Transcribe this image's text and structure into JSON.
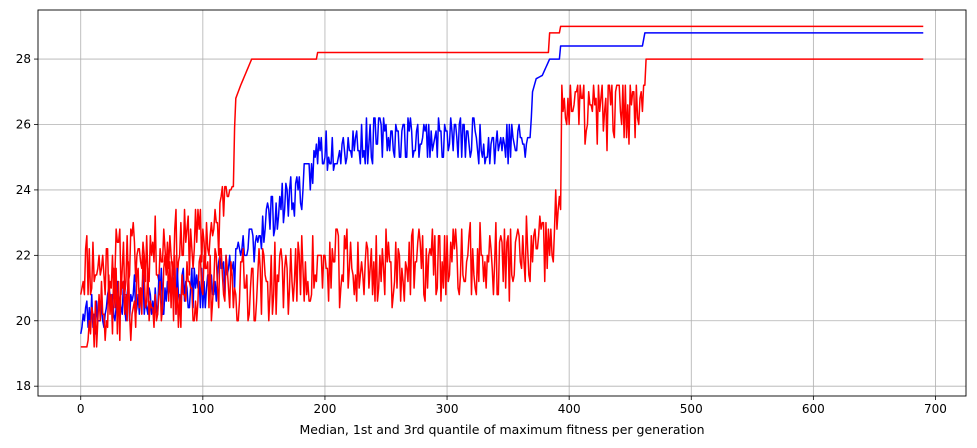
{
  "chart_data": {
    "type": "line",
    "title": "",
    "xlabel": "Median, 1st and 3rd quantile of maximum fitness per generation",
    "ylabel": "",
    "xlim": [
      -35,
      725
    ],
    "ylim": [
      17.7,
      29.5
    ],
    "xticks": [
      0,
      100,
      200,
      300,
      400,
      500,
      600,
      700
    ],
    "yticks": [
      18,
      20,
      22,
      24,
      26,
      28
    ],
    "grid": true,
    "legend": "none",
    "series": [
      {
        "color": "#ff0000",
        "style": "noisy",
        "base": [
          [
            0,
            21.4
          ],
          [
            5,
            21.8
          ],
          [
            15,
            21.6
          ],
          [
            30,
            21.8
          ],
          [
            60,
            22.2
          ],
          [
            90,
            22.4
          ],
          [
            110,
            22.6
          ],
          [
            114,
            23.0
          ],
          [
            117,
            24.0
          ],
          [
            120,
            24.8
          ],
          [
            125,
            25.0
          ],
          [
            127,
            26.8
          ],
          [
            131,
            27.2
          ],
          [
            140,
            28.0
          ],
          [
            193,
            28.0
          ],
          [
            194,
            28.2
          ],
          [
            383,
            28.2
          ],
          [
            384,
            28.8
          ],
          [
            392,
            28.8
          ],
          [
            393,
            29.0
          ],
          [
            690,
            29.0
          ]
        ],
        "noise_range": [
          0,
          125
        ],
        "amp": 1.1,
        "min": 18.0,
        "max": 24.1,
        "seed": 11
      },
      {
        "color": "#0000ff",
        "style": "noisy",
        "base": [
          [
            0,
            20.0
          ],
          [
            30,
            20.6
          ],
          [
            60,
            20.8
          ],
          [
            100,
            21.0
          ],
          [
            130,
            21.8
          ],
          [
            150,
            23.0
          ],
          [
            165,
            23.6
          ],
          [
            185,
            24.2
          ],
          [
            195,
            25.2
          ],
          [
            220,
            25.4
          ],
          [
            250,
            25.6
          ],
          [
            300,
            25.6
          ],
          [
            368,
            25.4
          ],
          [
            370,
            27.0
          ],
          [
            373,
            27.4
          ],
          [
            378,
            27.5
          ],
          [
            384,
            28.0
          ],
          [
            392,
            28.0
          ],
          [
            393,
            28.4
          ],
          [
            460,
            28.4
          ],
          [
            462,
            28.8
          ],
          [
            690,
            28.8
          ]
        ],
        "noise_range": [
          0,
          368
        ],
        "amp": 0.7,
        "min": 19.6,
        "max": 26.4,
        "seed": 23
      },
      {
        "color": "#ff0000",
        "style": "noisy",
        "base": [
          [
            0,
            18.4
          ],
          [
            5,
            19.8
          ],
          [
            20,
            20.4
          ],
          [
            50,
            20.8
          ],
          [
            100,
            21.0
          ],
          [
            150,
            21.2
          ],
          [
            200,
            21.6
          ],
          [
            250,
            21.6
          ],
          [
            300,
            21.8
          ],
          [
            350,
            21.8
          ],
          [
            385,
            22.2
          ],
          [
            390,
            23.2
          ],
          [
            393,
            23.4
          ],
          [
            394,
            26.6
          ],
          [
            397,
            26.8
          ],
          [
            410,
            26.6
          ],
          [
            420,
            26.3
          ],
          [
            440,
            26.6
          ],
          [
            455,
            26.6
          ],
          [
            460,
            27.6
          ],
          [
            463,
            28.0
          ],
          [
            690,
            28.0
          ]
        ],
        "noise_range": [
          0,
          462
        ],
        "amp": 1.2,
        "min": 19.2,
        "max": 27.2,
        "seed": 37
      }
    ]
  }
}
